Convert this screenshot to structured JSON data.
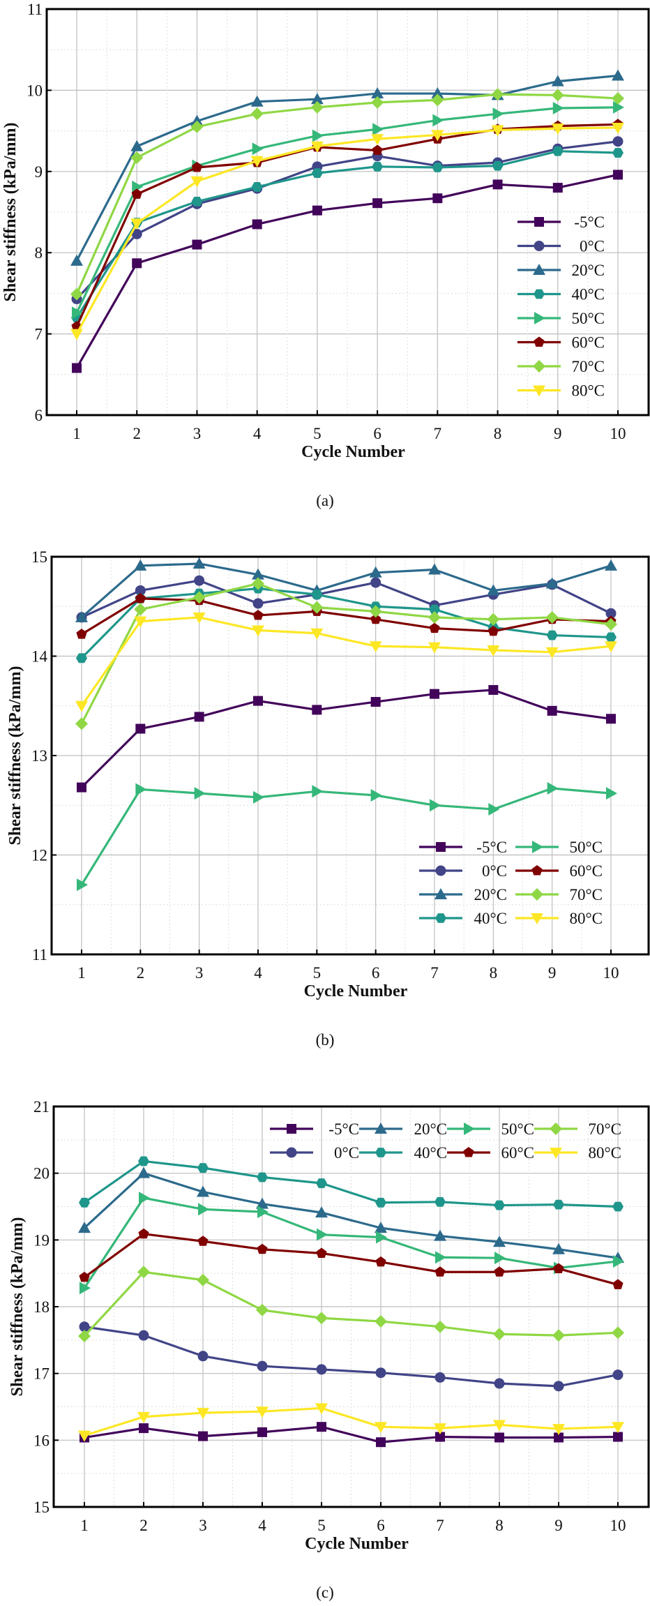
{
  "series_style": [
    {
      "name": "-5°C",
      "color": "#42045a",
      "marker": "square"
    },
    {
      "name": "0°C",
      "color": "#414487",
      "marker": "circle"
    },
    {
      "name": "20°C",
      "color": "#2c6a8c",
      "marker": "triangle-up"
    },
    {
      "name": "40°C",
      "color": "#1f968b",
      "marker": "hexagon"
    },
    {
      "name": "50°C",
      "color": "#35b779",
      "marker": "triangle-right"
    },
    {
      "name": "60°C",
      "color": "#800000",
      "marker": "pentagon"
    },
    {
      "name": "70°C",
      "color": "#8fd744",
      "marker": "diamond"
    },
    {
      "name": "80°C",
      "color": "#fde725",
      "marker": "triangle-down"
    }
  ],
  "chart_data": [
    {
      "type": "line",
      "caption": "(a)",
      "xlabel": "Cycle Number",
      "ylabel": "Shear stiffness (kPa/mm)",
      "x": [
        1,
        2,
        3,
        4,
        5,
        6,
        7,
        8,
        9,
        10
      ],
      "ylim": [
        6,
        11
      ],
      "yticks": [
        6,
        7,
        8,
        9,
        10,
        11
      ],
      "grid": true,
      "legend": "bottom-right, 1 column",
      "series": [
        {
          "name": "-5°C",
          "values": [
            6.58,
            7.87,
            8.1,
            8.35,
            8.52,
            8.61,
            8.67,
            8.84,
            8.8,
            8.96
          ]
        },
        {
          "name": "0°C",
          "values": [
            7.43,
            8.23,
            8.6,
            8.79,
            9.06,
            9.19,
            9.07,
            9.11,
            9.28,
            9.37
          ]
        },
        {
          "name": "20°C",
          "values": [
            7.9,
            9.31,
            9.62,
            9.86,
            9.89,
            9.96,
            9.96,
            9.94,
            10.11,
            10.18
          ]
        },
        {
          "name": "40°C",
          "values": [
            7.2,
            8.37,
            8.63,
            8.81,
            8.98,
            9.06,
            9.05,
            9.07,
            9.25,
            9.23
          ]
        },
        {
          "name": "50°C",
          "values": [
            7.26,
            8.81,
            9.07,
            9.28,
            9.44,
            9.52,
            9.63,
            9.71,
            9.78,
            9.79
          ]
        },
        {
          "name": "60°C",
          "values": [
            7.09,
            8.72,
            9.05,
            9.11,
            9.3,
            9.26,
            9.4,
            9.52,
            9.56,
            9.58
          ]
        },
        {
          "name": "70°C",
          "values": [
            7.49,
            9.17,
            9.55,
            9.71,
            9.79,
            9.85,
            9.88,
            9.95,
            9.94,
            9.9
          ]
        },
        {
          "name": "80°C",
          "values": [
            7.0,
            8.36,
            8.88,
            9.13,
            9.31,
            9.4,
            9.45,
            9.51,
            9.53,
            9.54
          ]
        }
      ]
    },
    {
      "type": "line",
      "caption": "(b)",
      "xlabel": "Cycle Number",
      "ylabel": "Shear stiffness (kPa/mm)",
      "x": [
        1,
        2,
        3,
        4,
        5,
        6,
        7,
        8,
        9,
        10
      ],
      "ylim": [
        11,
        15
      ],
      "yticks": [
        11,
        12,
        13,
        14,
        15
      ],
      "grid": true,
      "legend": "bottom-right, 2 columns",
      "series": [
        {
          "name": "-5°C",
          "values": [
            12.68,
            13.27,
            13.39,
            13.55,
            13.46,
            13.54,
            13.62,
            13.66,
            13.45,
            13.37
          ]
        },
        {
          "name": "0°C",
          "values": [
            14.39,
            14.66,
            14.76,
            14.53,
            14.62,
            14.74,
            14.51,
            14.62,
            14.72,
            14.43
          ]
        },
        {
          "name": "20°C",
          "values": [
            14.39,
            14.91,
            14.93,
            14.82,
            14.66,
            14.84,
            14.87,
            14.66,
            14.73,
            14.91
          ]
        },
        {
          "name": "40°C",
          "values": [
            13.98,
            14.58,
            14.63,
            14.68,
            14.62,
            14.5,
            14.47,
            14.29,
            14.21,
            14.19
          ]
        },
        {
          "name": "50°C",
          "values": [
            11.7,
            12.66,
            12.62,
            12.58,
            12.64,
            12.6,
            12.5,
            12.46,
            12.67,
            12.62
          ]
        },
        {
          "name": "60°C",
          "values": [
            14.22,
            14.58,
            14.56,
            14.41,
            14.45,
            14.37,
            14.28,
            14.25,
            14.37,
            14.35
          ]
        },
        {
          "name": "70°C",
          "values": [
            13.32,
            14.47,
            14.59,
            14.73,
            14.49,
            14.45,
            14.39,
            14.37,
            14.39,
            14.32
          ]
        },
        {
          "name": "80°C",
          "values": [
            13.5,
            14.35,
            14.39,
            14.26,
            14.23,
            14.1,
            14.09,
            14.06,
            14.04,
            14.1
          ]
        }
      ]
    },
    {
      "type": "line",
      "caption": "(c)",
      "xlabel": "Cycle Number",
      "ylabel": "Shear stiffness (kPa/mm)",
      "x": [
        1,
        2,
        3,
        4,
        5,
        6,
        7,
        8,
        9,
        10
      ],
      "ylim": [
        15,
        21
      ],
      "yticks": [
        15,
        16,
        17,
        18,
        19,
        20,
        21
      ],
      "grid": true,
      "legend": "top-right, 4 columns",
      "series": [
        {
          "name": "-5°C",
          "values": [
            16.04,
            16.18,
            16.06,
            16.12,
            16.2,
            15.97,
            16.05,
            16.04,
            16.04,
            16.05
          ]
        },
        {
          "name": "0°C",
          "values": [
            17.7,
            17.57,
            17.26,
            17.11,
            17.06,
            17.01,
            16.94,
            16.85,
            16.81,
            16.98
          ]
        },
        {
          "name": "20°C",
          "values": [
            19.18,
            20.0,
            19.72,
            19.54,
            19.41,
            19.18,
            19.06,
            18.97,
            18.86,
            18.73
          ]
        },
        {
          "name": "40°C",
          "values": [
            19.56,
            20.18,
            20.08,
            19.94,
            19.85,
            19.56,
            19.57,
            19.52,
            19.53,
            19.5
          ]
        },
        {
          "name": "50°C",
          "values": [
            18.28,
            19.63,
            19.46,
            19.42,
            19.08,
            19.04,
            18.74,
            18.73,
            18.58,
            18.68
          ]
        },
        {
          "name": "60°C",
          "values": [
            18.44,
            19.09,
            18.98,
            18.86,
            18.8,
            18.67,
            18.52,
            18.52,
            18.57,
            18.33
          ]
        },
        {
          "name": "70°C",
          "values": [
            17.56,
            18.52,
            18.4,
            17.95,
            17.83,
            17.78,
            17.7,
            17.59,
            17.57,
            17.61
          ]
        },
        {
          "name": "80°C",
          "values": [
            16.07,
            16.35,
            16.41,
            16.43,
            16.48,
            16.2,
            16.18,
            16.23,
            16.17,
            16.2
          ]
        }
      ]
    }
  ]
}
